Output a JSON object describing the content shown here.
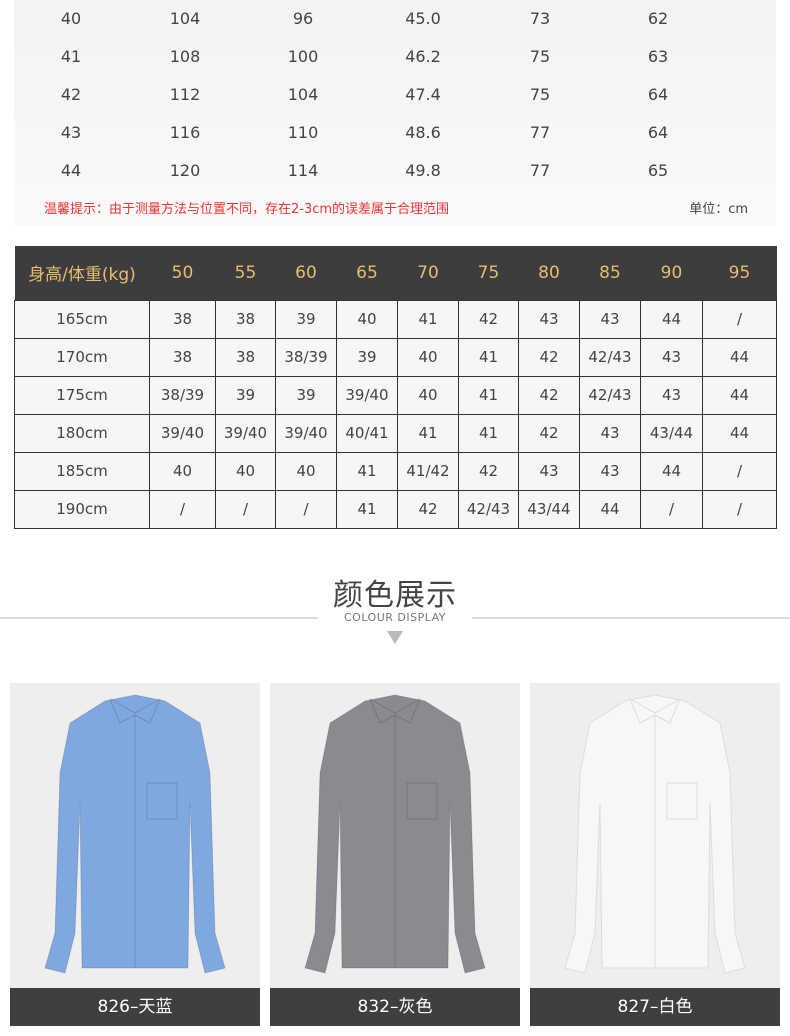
{
  "size_table": {
    "rows": [
      [
        "40",
        "104",
        "96",
        "45.0",
        "73",
        "62"
      ],
      [
        "41",
        "108",
        "100",
        "46.2",
        "75",
        "63"
      ],
      [
        "42",
        "112",
        "104",
        "47.4",
        "75",
        "64"
      ],
      [
        "43",
        "116",
        "110",
        "48.6",
        "77",
        "64"
      ],
      [
        "44",
        "120",
        "114",
        "49.8",
        "77",
        "65"
      ]
    ],
    "note": "温馨提示：由于测量方法与位置不同，存在2-3cm的误差属于合理范围",
    "unit": "单位：cm"
  },
  "fit_table": {
    "header": [
      "身高/体重(kg)",
      "50",
      "55",
      "60",
      "65",
      "70",
      "75",
      "80",
      "85",
      "90",
      "95"
    ],
    "rows": [
      [
        "165cm",
        "38",
        "38",
        "39",
        "40",
        "41",
        "42",
        "43",
        "43",
        "44",
        "/"
      ],
      [
        "170cm",
        "38",
        "38",
        "38/39",
        "39",
        "40",
        "41",
        "42",
        "42/43",
        "43",
        "44"
      ],
      [
        "175cm",
        "38/39",
        "39",
        "39",
        "39/40",
        "40",
        "41",
        "42",
        "42/43",
        "43",
        "44"
      ],
      [
        "180cm",
        "39/40",
        "39/40",
        "39/40",
        "40/41",
        "41",
        "41",
        "42",
        "43",
        "43/44",
        "44"
      ],
      [
        "185cm",
        "40",
        "40",
        "40",
        "41",
        "41/42",
        "42",
        "43",
        "43",
        "44",
        "/"
      ],
      [
        "190cm",
        "/",
        "/",
        "/",
        "41",
        "42",
        "42/43",
        "43/44",
        "44",
        "/",
        "/"
      ]
    ]
  },
  "colour_section": {
    "title": "颜色展示",
    "subtitle": "COLOUR DISPLAY"
  },
  "products": [
    {
      "label": "826–天蓝",
      "color": "#7fa8e0"
    },
    {
      "label": "832–灰色",
      "color": "#8a8b90"
    },
    {
      "label": "827–白色",
      "color": "#f7f7f9"
    }
  ]
}
